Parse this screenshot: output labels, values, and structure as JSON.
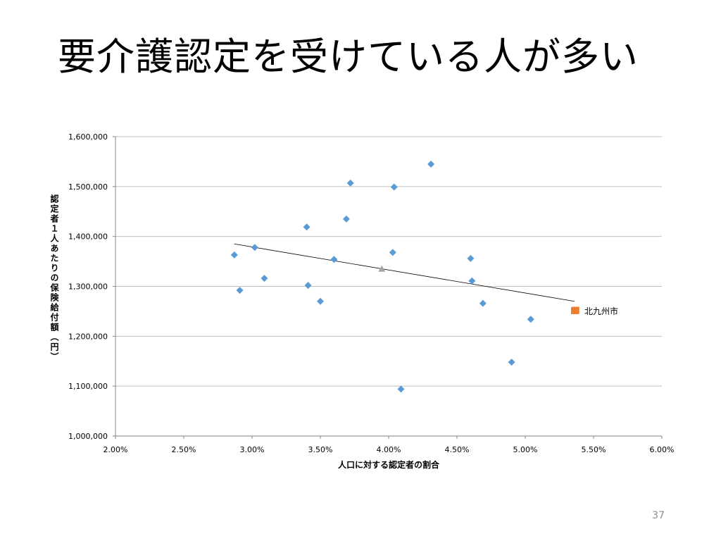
{
  "slide": {
    "title": "要介護認定を受けている人が多い",
    "page_number": "37"
  },
  "colors": {
    "points": "#5b9bd5",
    "highlight": "#ed7d31",
    "average": "#a5a5a5",
    "trendline": "#000000",
    "gridline": "#c0c0c0"
  },
  "chart_data": {
    "type": "scatter",
    "xlabel": "人口に対する認定者の割合",
    "ylabel": "認定者１人あたりの保険給付額（円）",
    "xlim": [
      0.02,
      0.06
    ],
    "ylim": [
      1000000,
      1600000
    ],
    "x_ticks": [
      "2.00%",
      "2.50%",
      "3.00%",
      "3.50%",
      "4.00%",
      "4.50%",
      "5.00%",
      "5.50%",
      "6.00%"
    ],
    "x_tick_values": [
      0.02,
      0.025,
      0.03,
      0.035,
      0.04,
      0.045,
      0.05,
      0.055,
      0.06
    ],
    "y_ticks": [
      "1,000,000",
      "1,100,000",
      "1,200,000",
      "1,300,000",
      "1,400,000",
      "1,500,000",
      "1,600,000"
    ],
    "y_tick_values": [
      1000000,
      1100000,
      1200000,
      1300000,
      1400000,
      1500000,
      1600000
    ],
    "grid": "horizontal",
    "series": [
      {
        "marker": "diamond",
        "points": [
          {
            "x": 0.0287,
            "y": 1363000
          },
          {
            "x": 0.0291,
            "y": 1292000
          },
          {
            "x": 0.0302,
            "y": 1378000
          },
          {
            "x": 0.0309,
            "y": 1316000
          },
          {
            "x": 0.034,
            "y": 1419000
          },
          {
            "x": 0.0341,
            "y": 1302000
          },
          {
            "x": 0.035,
            "y": 1270000
          },
          {
            "x": 0.036,
            "y": 1354000
          },
          {
            "x": 0.0369,
            "y": 1435000
          },
          {
            "x": 0.0372,
            "y": 1507000
          },
          {
            "x": 0.0403,
            "y": 1368000
          },
          {
            "x": 0.0404,
            "y": 1499000
          },
          {
            "x": 0.0409,
            "y": 1094000
          },
          {
            "x": 0.0431,
            "y": 1545000
          },
          {
            "x": 0.046,
            "y": 1356000
          },
          {
            "x": 0.0461,
            "y": 1311000
          },
          {
            "x": 0.0469,
            "y": 1266000
          },
          {
            "x": 0.049,
            "y": 1148000
          },
          {
            "x": 0.0504,
            "y": 1234000
          }
        ]
      },
      {
        "marker": "triangle",
        "points": [
          {
            "x": 0.0395,
            "y": 1335000
          }
        ]
      },
      {
        "name": "北九州市",
        "marker": "square",
        "points": [
          {
            "x": 0.0537,
            "y": 1252000
          }
        ]
      }
    ],
    "trendline": {
      "x": [
        0.0287,
        0.0536
      ],
      "y": [
        1385000,
        1270000
      ]
    }
  }
}
